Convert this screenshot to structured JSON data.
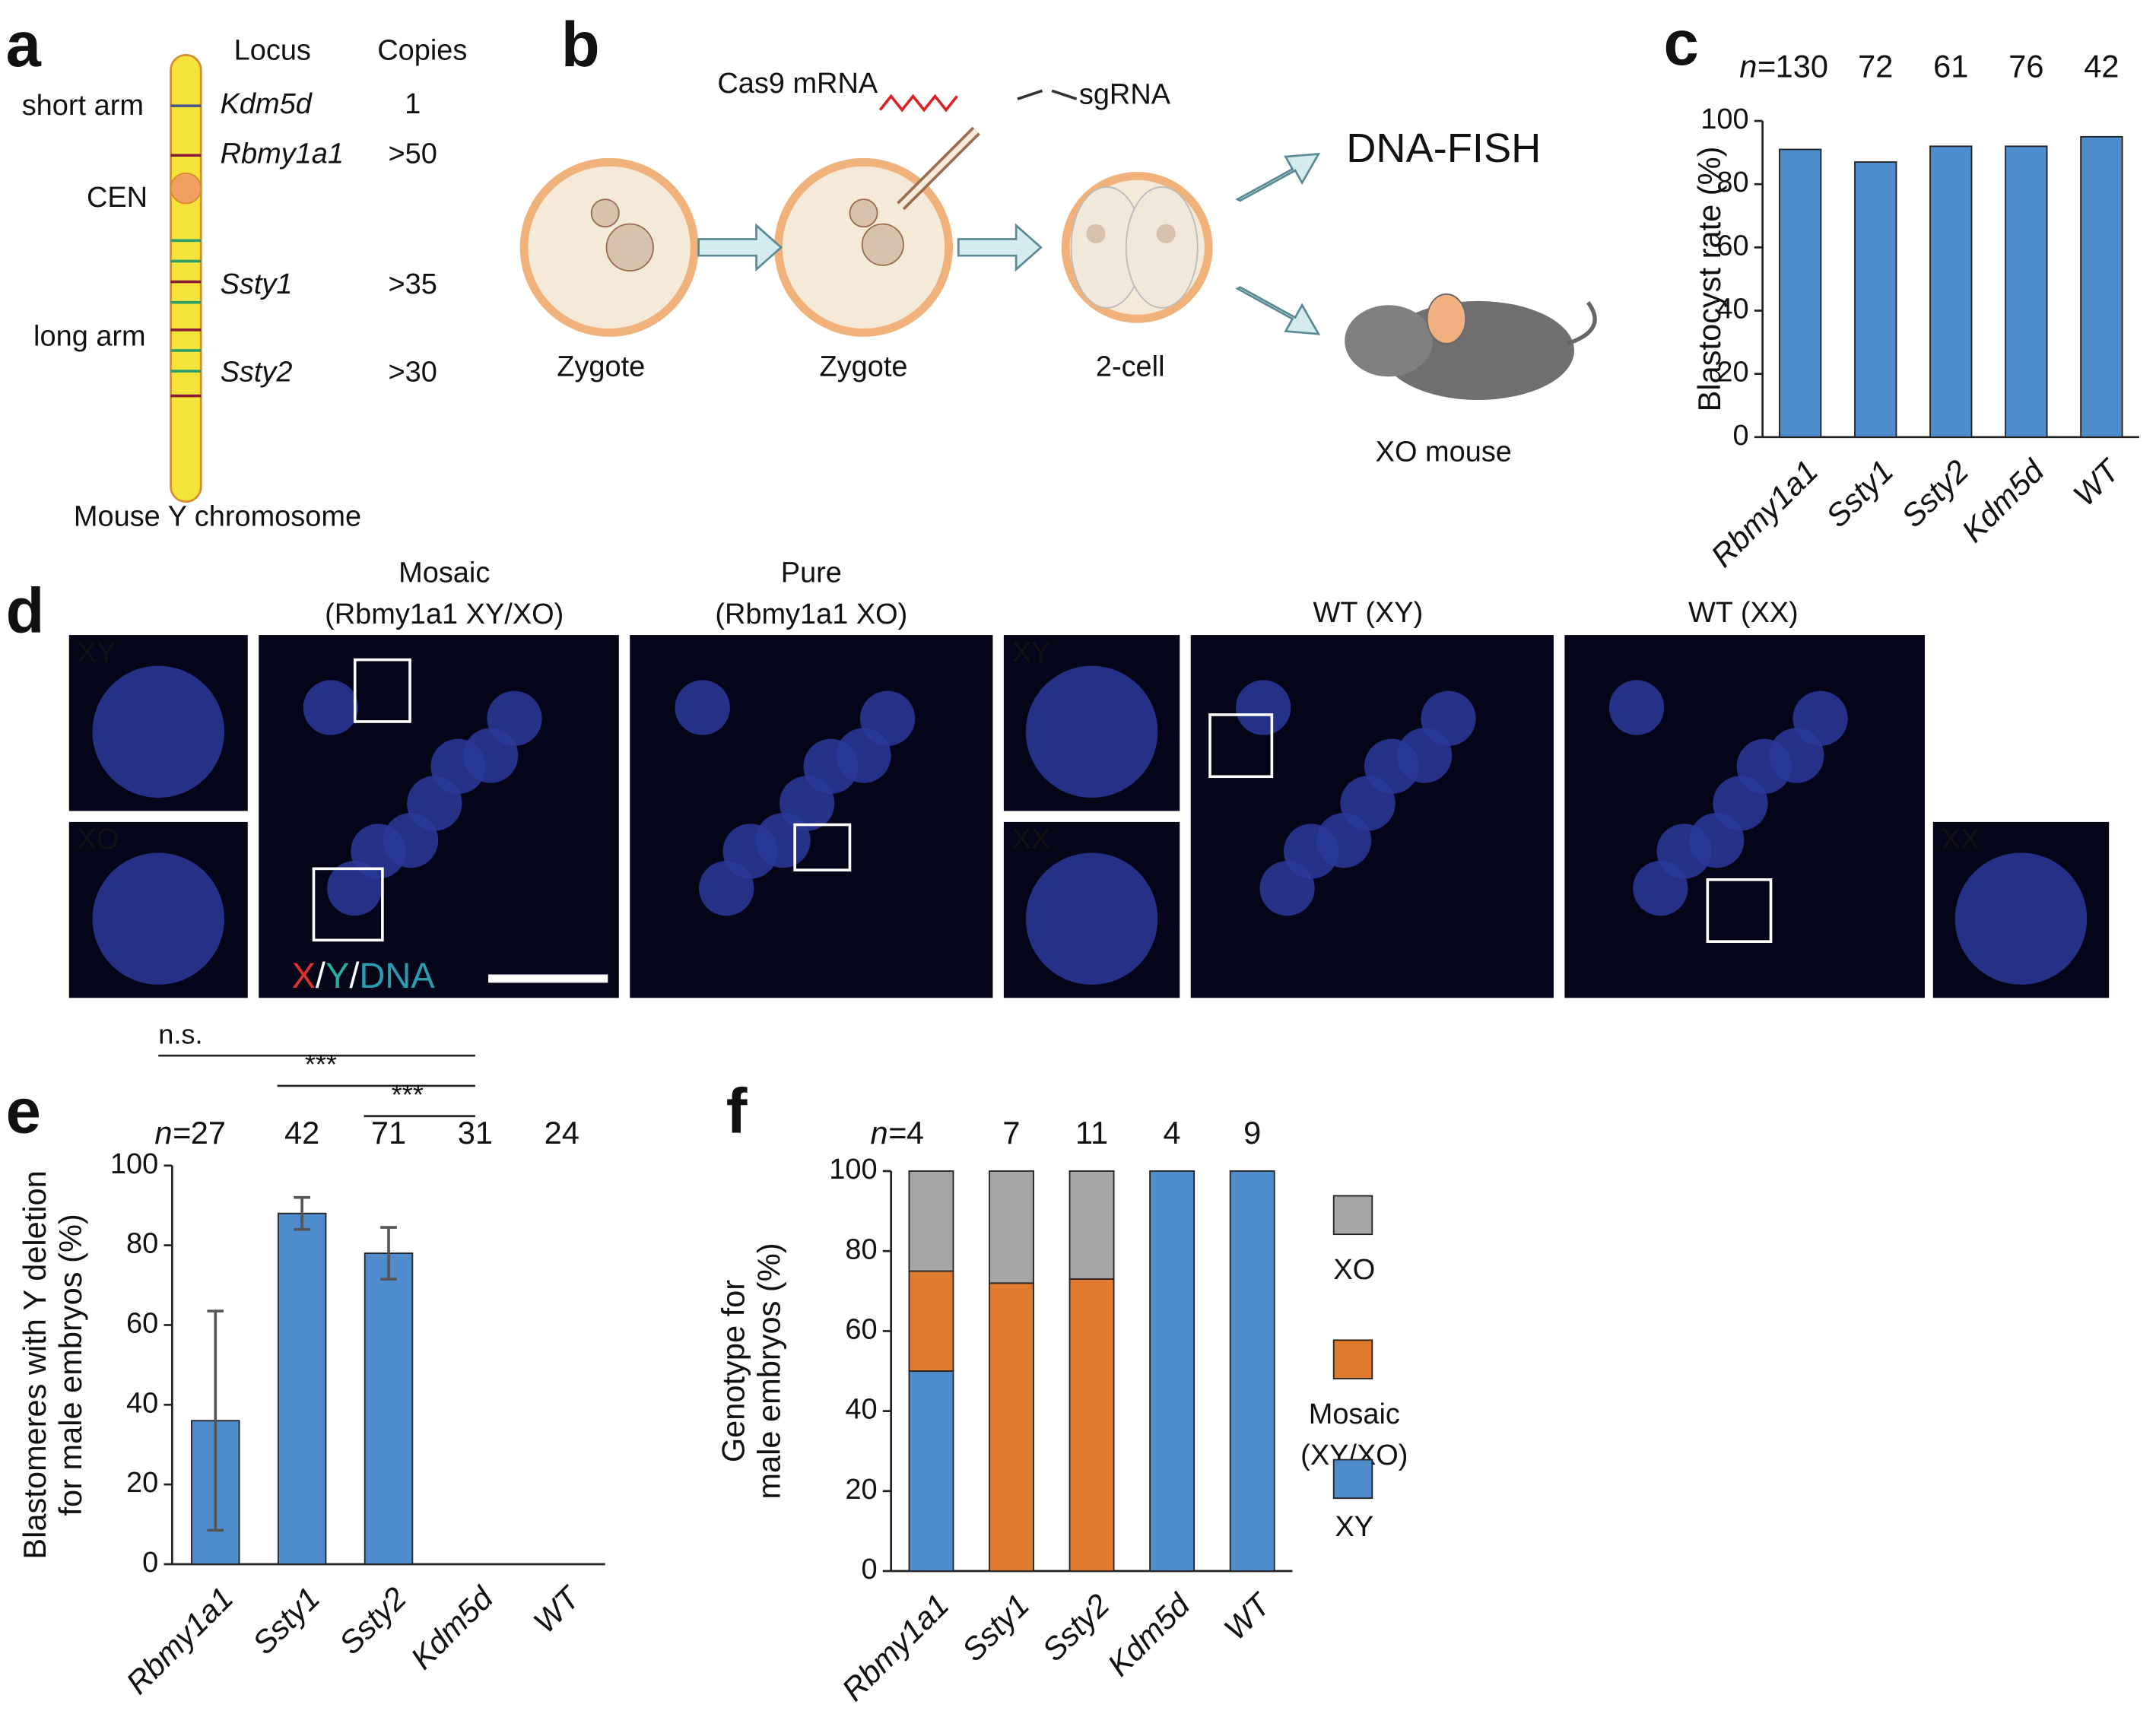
{
  "panel_a": {
    "label": "a",
    "locus_header": "Locus",
    "copies_header": "Copies",
    "short_arm": "short arm",
    "cen": "CEN",
    "long_arm": "long arm",
    "caption": "Mouse Y chromosome",
    "loci": [
      {
        "name": "Kdm5d",
        "copies": "1",
        "color": "#8c6a3c"
      },
      {
        "name": "Rbmy1a1",
        "copies": ">50",
        "color": "#8b1a3a"
      },
      {
        "name": "Ssty1",
        "copies": ">35",
        "color": "#2a9d6a"
      },
      {
        "name": "Ssty2",
        "copies": ">30",
        "color": "#e0401f"
      }
    ]
  },
  "panel_b": {
    "label": "b",
    "cas9": "Cas9 mRNA",
    "sgrna": "sgRNA",
    "stages": [
      "Zygote",
      "Zygote",
      "2-cell"
    ],
    "fish": "DNA-FISH",
    "mouse": "XO mouse"
  },
  "panel_d": {
    "label": "d",
    "mosaic": "Mosaic",
    "mosaic_sub": "(Rbmy1a1 XY/XO)",
    "pure": "Pure",
    "pure_sub": "(Rbmy1a1 XO)",
    "wt_xy": "WT (XY)",
    "wt_xx": "WT (XX)",
    "insets": [
      "XY",
      "XO",
      "XY",
      "XX",
      "XX"
    ],
    "stain": [
      "X",
      "/",
      "Y",
      "/",
      "DNA"
    ]
  },
  "chart_data": [
    {
      "type": "bar",
      "label": "c",
      "ylabel": [
        "Blastocyst rate (%)"
      ],
      "n_label": "n=",
      "n_values": [
        130,
        72,
        61,
        76,
        42
      ],
      "categories": [
        "Rbmy1a1",
        "Ssty1",
        "Ssty2",
        "Kdm5d",
        "WT"
      ],
      "values": [
        91,
        87,
        92,
        92,
        95
      ],
      "color": "#4f8ccc",
      "ylim": [
        0,
        100
      ],
      "yticks": [
        0,
        20,
        40,
        60,
        80,
        100
      ]
    },
    {
      "type": "errorbar",
      "label": "e",
      "ylabel": [
        "Blastomeres with Y deletion",
        "for male embryos (%)"
      ],
      "n_label": "n=",
      "n_values": [
        27,
        42,
        71,
        31,
        24
      ],
      "categories": [
        "Rbmy1a1",
        "Ssty1",
        "Ssty2",
        "Kdm5d",
        "WT"
      ],
      "values": [
        36,
        88,
        78,
        0,
        0
      ],
      "errors": [
        27.5,
        4,
        6.5,
        null,
        null
      ],
      "color": "#4f8ccc",
      "ylim": [
        0,
        100
      ],
      "yticks": [
        0,
        20,
        40,
        60,
        80,
        100
      ],
      "significance": [
        "n.s.",
        "***",
        "***"
      ]
    },
    {
      "type": "stacked",
      "label": "f",
      "ylabel": [
        "Genotype for",
        "male embryos (%)"
      ],
      "n_label": "n=",
      "n_values": [
        4,
        7,
        11,
        4,
        9
      ],
      "categories": [
        "Rbmy1a1",
        "Ssty1",
        "Ssty2",
        "Kdm5d",
        "WT"
      ],
      "series": [
        {
          "name": "XY",
          "color": "#4f8ccc",
          "values": [
            50,
            0,
            0,
            100,
            100
          ]
        },
        {
          "name": "Mosaic (XY/XO)",
          "color": "#e07b2e",
          "values": [
            25,
            72,
            73,
            0,
            0
          ]
        },
        {
          "name": "XO",
          "color": "#a6a6a6",
          "values": [
            25,
            28,
            27,
            0,
            0
          ]
        }
      ],
      "ylim": [
        0,
        100
      ],
      "yticks": [
        0,
        20,
        40,
        60,
        80,
        100
      ]
    }
  ]
}
